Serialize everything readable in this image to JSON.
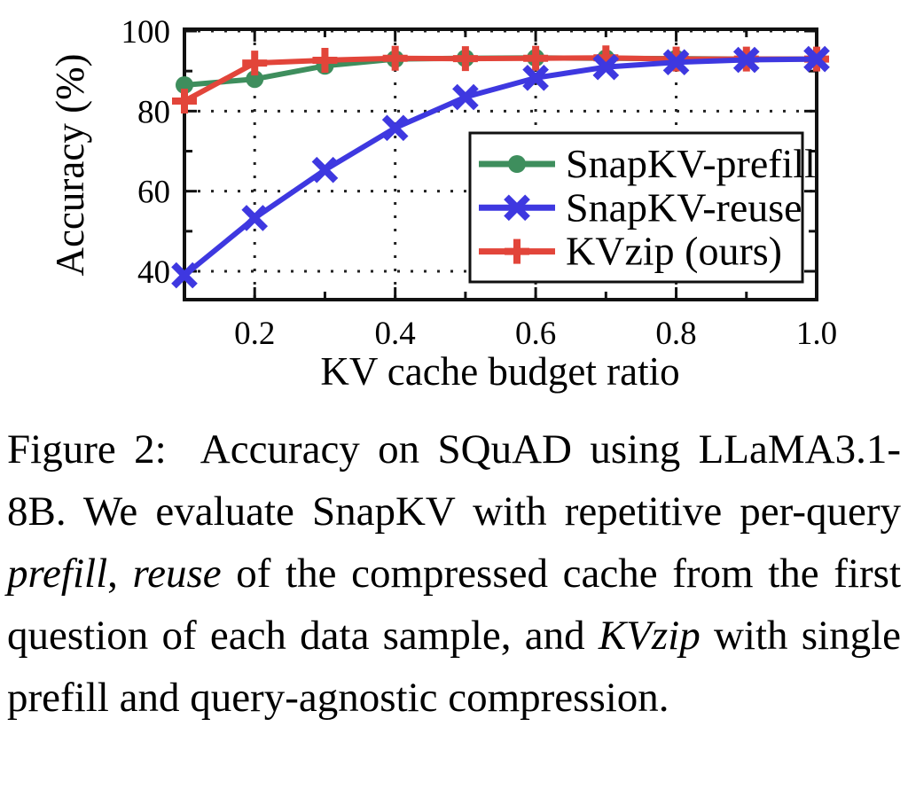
{
  "chart_data": {
    "type": "line",
    "title": "",
    "xlabel": "KV cache budget ratio",
    "ylabel": "Accuracy (%)",
    "x": [
      0.1,
      0.2,
      0.3,
      0.4,
      0.5,
      0.6,
      0.7,
      0.8,
      0.9,
      1.0
    ],
    "xlim": [
      0.1,
      1.0
    ],
    "ylim": [
      33,
      100.5
    ],
    "xticks": [
      0.2,
      0.4,
      0.6,
      0.8,
      1.0
    ],
    "xtick_labels": [
      "0.2",
      "0.4",
      "0.6",
      "0.8",
      "1.0"
    ],
    "yticks": [
      40,
      60,
      80,
      100
    ],
    "ytick_labels": [
      "40",
      "60",
      "80",
      "100"
    ],
    "minor_xticks": [
      0.3,
      0.5,
      0.7,
      0.9
    ],
    "minor_yticks": [
      50,
      70,
      90
    ],
    "grid": "dotted",
    "legend_position": "inside center-right",
    "frame_color": "#111111",
    "series": [
      {
        "name": "SnapKV-prefill",
        "color": "#3e8e5d",
        "marker": "circle",
        "values": [
          86.5,
          88.0,
          91.3,
          93.0,
          93.2,
          93.3,
          93.2,
          93.1,
          93.0,
          93.0
        ]
      },
      {
        "name": "SnapKV-reuse",
        "color": "#3e38e0",
        "marker": "x",
        "values": [
          39.0,
          53.3,
          65.3,
          75.8,
          83.5,
          88.3,
          91.0,
          92.2,
          92.8,
          93.0
        ]
      },
      {
        "name": "KVzip (ours)",
        "color": "#e2453a",
        "marker": "plus",
        "values": [
          82.5,
          92.0,
          92.7,
          93.2,
          93.1,
          93.2,
          93.3,
          93.0,
          93.0,
          93.0
        ]
      }
    ]
  },
  "caption": {
    "segments": [
      {
        "text": "Figure 2:  Accuracy on SQuAD using LLaMA3.1-8B. We evaluate SnapKV with repetitive per-query ",
        "italic": false
      },
      {
        "text": "prefill",
        "italic": true
      },
      {
        "text": ", ",
        "italic": false
      },
      {
        "text": "reuse",
        "italic": true
      },
      {
        "text": " of the compressed cache from the first question of each data sample, and ",
        "italic": false
      },
      {
        "text": "KVzip",
        "italic": true
      },
      {
        "text": " with single prefill and query-agnostic compression.",
        "italic": false
      }
    ]
  }
}
